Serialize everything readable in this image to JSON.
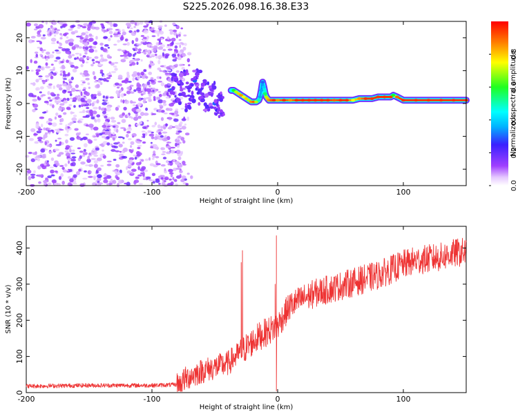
{
  "chart_data": [
    {
      "type": "heatmap",
      "title": "S225.2026.098.16.38.E33",
      "xlabel": "Height of straight line (km)",
      "ylabel": "Frequency (Hz)",
      "xlim": [
        -200,
        150
      ],
      "ylim": [
        -25,
        25
      ],
      "xticks": [
        -200,
        -100,
        0,
        100
      ],
      "xtick_labels": [
        "-200",
        "-100",
        "0",
        "100"
      ],
      "yticks": [
        -20,
        -10,
        0,
        10,
        20
      ],
      "ytick_labels": [
        "-20",
        "-10",
        "0",
        "10",
        "20"
      ],
      "colorbar": {
        "label": "Normalized spectral amplitude",
        "range": [
          0.0,
          1.0
        ],
        "ticks": [
          0.0,
          0.2,
          0.4,
          0.6,
          0.8
        ],
        "tick_labels": [
          "0.0",
          "0.2",
          "0.4",
          "0.6",
          "0.8"
        ],
        "colormap": "rainbow (white at 0, purple, blue, cyan, green, yellow, red at 1)"
      },
      "noise_region": {
        "x_range": [
          -200,
          -80
        ],
        "freq_range": [
          -25,
          25
        ]
      },
      "transition_blobs": [
        {
          "x": -85,
          "freq": 4,
          "amp": 0.3
        },
        {
          "x": -82,
          "freq": 8,
          "amp": 0.15
        },
        {
          "x": -80,
          "freq": 1,
          "amp": 0.2
        },
        {
          "x": -78,
          "freq": 6,
          "amp": 0.25
        },
        {
          "x": -75,
          "freq": 3,
          "amp": 0.15
        },
        {
          "x": -74,
          "freq": 9,
          "amp": 0.15
        },
        {
          "x": -72,
          "freq": -1,
          "amp": 0.15
        },
        {
          "x": -70,
          "freq": 5,
          "amp": 0.2
        },
        {
          "x": -68,
          "freq": 2,
          "amp": 0.2
        },
        {
          "x": -66,
          "freq": 7,
          "amp": 0.3
        },
        {
          "x": -64,
          "freq": 9,
          "amp": 0.15
        },
        {
          "x": -62,
          "freq": 4,
          "amp": 0.2
        },
        {
          "x": -60,
          "freq": 1,
          "amp": 0.15
        },
        {
          "x": -58,
          "freq": 6,
          "amp": 0.2
        },
        {
          "x": -56,
          "freq": -1,
          "amp": 0.25
        },
        {
          "x": -54,
          "freq": 3,
          "amp": 0.15
        },
        {
          "x": -52,
          "freq": 5,
          "amp": 0.2
        },
        {
          "x": -50,
          "freq": 0,
          "amp": 0.3
        },
        {
          "x": -48,
          "freq": -2,
          "amp": 0.25
        },
        {
          "x": -46,
          "freq": 2,
          "amp": 0.2
        },
        {
          "x": -44,
          "freq": -3,
          "amp": 0.15
        }
      ],
      "ridge": {
        "x": [
          -37,
          -35,
          -33,
          -31,
          -29,
          -27,
          -25,
          -23,
          -21,
          -19,
          -17,
          -15,
          -14,
          -13,
          -12,
          -11,
          -10,
          -9,
          -8,
          -7,
          -5,
          -3,
          0,
          5,
          10,
          15,
          20,
          25,
          30,
          35,
          40,
          45,
          50,
          55,
          60,
          65,
          70,
          75,
          80,
          85,
          90,
          92,
          95,
          100,
          110,
          120,
          130,
          140,
          150
        ],
        "freq": [
          4,
          4,
          3.5,
          3,
          2.5,
          2,
          1.5,
          1,
          0.5,
          0.5,
          0.5,
          1,
          2,
          4,
          6.5,
          5,
          3,
          2,
          1.5,
          1,
          1,
          1,
          1,
          1,
          1,
          1,
          1,
          1,
          1,
          1,
          1,
          1,
          1,
          1,
          1,
          1.5,
          1.5,
          1.5,
          2,
          2,
          2,
          2.5,
          2,
          1,
          1,
          1,
          1,
          1,
          1
        ],
        "amp": [
          0.45,
          0.6,
          0.7,
          0.8,
          0.85,
          0.75,
          0.8,
          0.7,
          0.85,
          0.9,
          0.7,
          0.5,
          0.35,
          0.35,
          0.3,
          0.4,
          0.55,
          0.7,
          0.8,
          0.85,
          0.9,
          0.95,
          0.85,
          0.95,
          0.85,
          0.95,
          0.95,
          0.95,
          0.95,
          0.95,
          0.95,
          0.9,
          0.95,
          0.95,
          0.75,
          0.85,
          0.95,
          0.95,
          0.95,
          0.95,
          0.95,
          0.6,
          0.9,
          0.95,
          0.95,
          0.95,
          0.95,
          0.95,
          0.95
        ]
      }
    },
    {
      "type": "line",
      "title": "",
      "xlabel": "Height of straight line (km)",
      "ylabel": "SNR (10 * v/v)",
      "xlim": [
        -200,
        150
      ],
      "ylim": [
        0,
        460
      ],
      "xticks": [
        -200,
        -100,
        0,
        100
      ],
      "xtick_labels": [
        "-200",
        "-100",
        "0",
        "100"
      ],
      "yticks": [
        0,
        100,
        200,
        300,
        400
      ],
      "ytick_labels": [
        "0",
        "100",
        "200",
        "300",
        "400"
      ],
      "series": [
        {
          "name": "SNR",
          "color": "#ee3333",
          "trend_x": [
            -200,
            -150,
            -100,
            -80,
            -70,
            -60,
            -50,
            -40,
            -35,
            -30,
            -25,
            -20,
            -15,
            -10,
            -5,
            0,
            5,
            10,
            20,
            30,
            40,
            50,
            60,
            70,
            80,
            90,
            100,
            110,
            120,
            130,
            140,
            150
          ],
          "trend_y": [
            18,
            20,
            20,
            22,
            45,
            60,
            70,
            80,
            95,
            110,
            125,
            140,
            155,
            165,
            175,
            185,
            215,
            240,
            260,
            275,
            285,
            295,
            305,
            315,
            325,
            340,
            355,
            365,
            370,
            375,
            385,
            390
          ],
          "spikes": [
            {
              "x": -28,
              "y": 393
            },
            {
              "x": -29,
              "y": 360
            },
            {
              "x": -1,
              "y": 434
            },
            {
              "x": -2,
              "y": 300
            },
            {
              "x": -1,
              "y": 5
            }
          ]
        }
      ]
    }
  ]
}
